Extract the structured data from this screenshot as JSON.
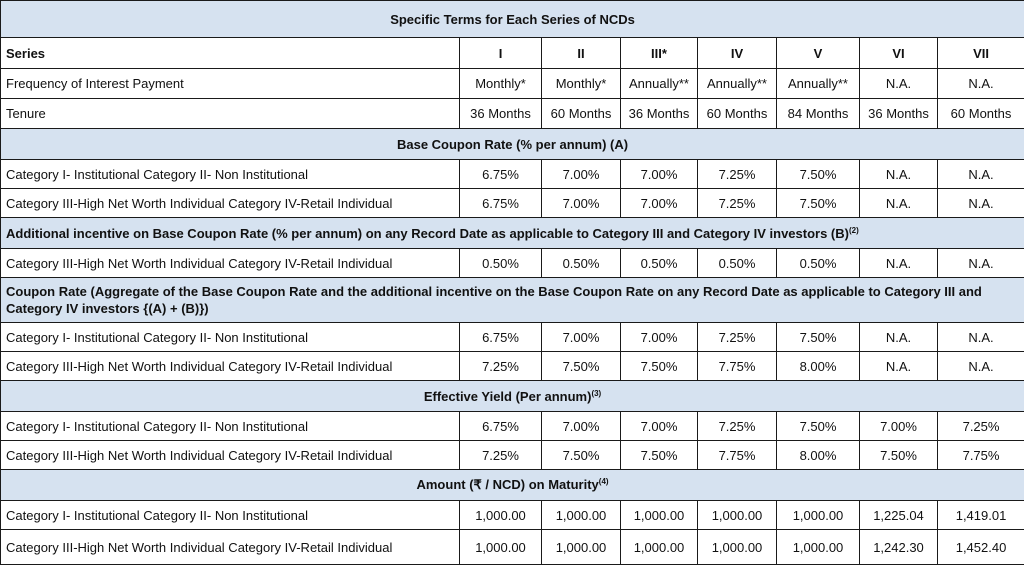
{
  "title": "Specific Terms for Each Series of NCDs",
  "columns": {
    "label": "Series",
    "series": [
      "I",
      "II",
      "III*",
      "IV",
      "V",
      "VI",
      "VII"
    ]
  },
  "frequency": {
    "label": "Frequency of Interest Payment",
    "values": [
      "Monthly*",
      "Monthly*",
      "Annually**",
      "Annually**",
      "Annually**",
      "N.A.",
      "N.A."
    ]
  },
  "tenure": {
    "label": "Tenure",
    "values": [
      "36 Months",
      "60 Months",
      "36 Months",
      "60 Months",
      "84 Months",
      "36 Months",
      "60 Months"
    ]
  },
  "sections": [
    {
      "title": "Base Coupon Rate (% per annum) (A)",
      "sup": "",
      "rows": [
        {
          "label": "Category I- Institutional Category II- Non Institutional",
          "values": [
            "6.75%",
            "7.00%",
            "7.00%",
            "7.25%",
            "7.50%",
            "N.A.",
            "N.A."
          ]
        },
        {
          "label": "Category III-High Net Worth Individual Category IV-Retail Individual",
          "values": [
            "6.75%",
            "7.00%",
            "7.00%",
            "7.25%",
            "7.50%",
            "N.A.",
            "N.A."
          ]
        }
      ]
    },
    {
      "title": "Additional incentive on Base Coupon Rate (% per annum) on any Record Date as applicable to Category III and Category IV investors (B)",
      "sup": "(2)",
      "rows": [
        {
          "label": "Category III-High Net Worth Individual Category IV-Retail Individual",
          "values": [
            "0.50%",
            "0.50%",
            "0.50%",
            "0.50%",
            "0.50%",
            "N.A.",
            "N.A."
          ]
        }
      ]
    },
    {
      "title": "Coupon Rate (Aggregate of the Base Coupon Rate and the additional incentive on the Base Coupon Rate on any Record Date as applicable to Category III and Category IV investors {(A) + (B)})",
      "sup": "",
      "rows": [
        {
          "label": "Category I- Institutional Category II- Non Institutional",
          "values": [
            "6.75%",
            "7.00%",
            "7.00%",
            "7.25%",
            "7.50%",
            "N.A.",
            "N.A."
          ]
        },
        {
          "label": "Category III-High Net Worth Individual Category IV-Retail Individual",
          "values": [
            "7.25%",
            "7.50%",
            "7.50%",
            "7.75%",
            "8.00%",
            "N.A.",
            "N.A."
          ]
        }
      ]
    },
    {
      "title": "Effective Yield (Per annum)",
      "sup": "(3)",
      "rows": [
        {
          "label": "Category I- Institutional Category II- Non Institutional",
          "values": [
            "6.75%",
            "7.00%",
            "7.00%",
            "7.25%",
            "7.50%",
            "7.00%",
            "7.25%"
          ]
        },
        {
          "label": "Category III-High Net Worth Individual Category IV-Retail Individual",
          "values": [
            "7.25%",
            "7.50%",
            "7.50%",
            "7.75%",
            "8.00%",
            "7.50%",
            "7.75%"
          ]
        }
      ]
    },
    {
      "title": "Amount (₹ / NCD) on Maturity",
      "sup": "(4)",
      "rows": [
        {
          "label": "Category I- Institutional Category II- Non Institutional",
          "values": [
            "1,000.00",
            "1,000.00",
            "1,000.00",
            "1,000.00",
            "1,000.00",
            "1,225.04",
            "1,419.01"
          ]
        },
        {
          "label": "Category III-High Net Worth Individual Category IV-Retail Individual",
          "values": [
            "1,000.00",
            "1,000.00",
            "1,000.00",
            "1,000.00",
            "1,000.00",
            "1,242.30",
            "1,452.40"
          ]
        }
      ]
    }
  ]
}
